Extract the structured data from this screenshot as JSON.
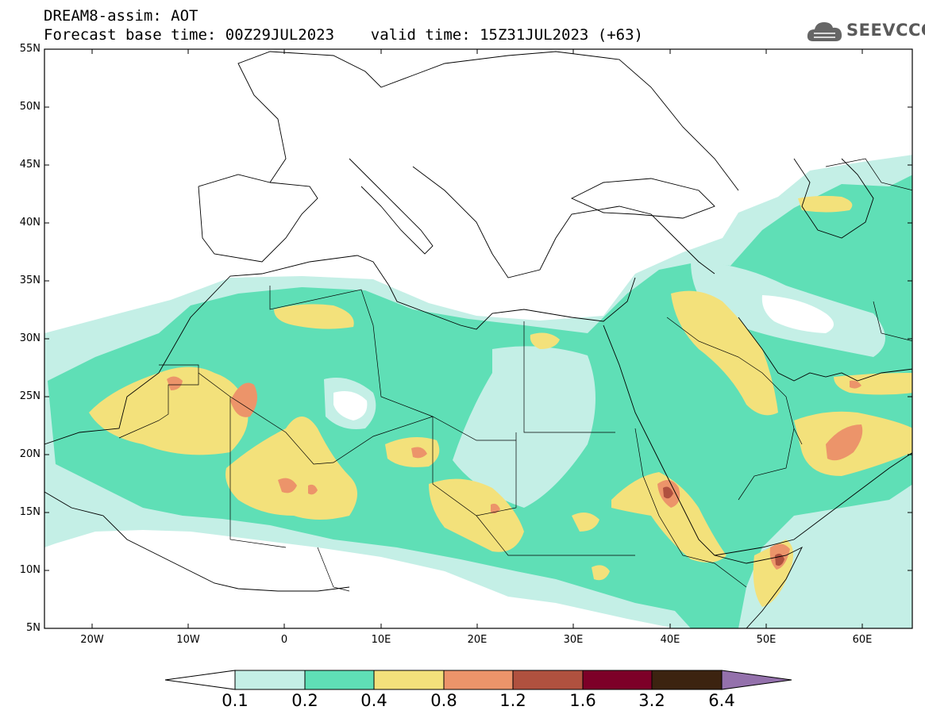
{
  "title": {
    "line1": "DREAM8-assim: AOT",
    "line2": "Forecast base time: 00Z29JUL2023    valid time: 15Z31JUL2023 (+63)"
  },
  "logo": {
    "text": "SEEVCCC",
    "icon": "cloud-icon"
  },
  "map": {
    "lat_labels": [
      "55N",
      "50N",
      "45N",
      "40N",
      "35N",
      "30N",
      "25N",
      "20N",
      "15N",
      "10N",
      "5N"
    ],
    "lon_labels": [
      "20W",
      "10W",
      "0",
      "10E",
      "20E",
      "30E",
      "40E",
      "50E",
      "60E"
    ],
    "lat_range": [
      5,
      55
    ],
    "lon_range": [
      -25,
      65
    ]
  },
  "colorbar": {
    "labels": [
      "0.1",
      "0.2",
      "0.4",
      "0.8",
      "1.2",
      "1.6",
      "3.2",
      "6.4"
    ],
    "colors": [
      "#ffffff",
      "#c4efe6",
      "#5fdfb6",
      "#f3e17b",
      "#ec946a",
      "#b0513f",
      "#7d0028",
      "#3c2310",
      "#9471ac"
    ]
  },
  "colors": {
    "aot_0_1_0_2": "#c4efe6",
    "aot_0_2_0_4": "#5fdfb6",
    "aot_0_4_0_8": "#f3e17b",
    "aot_0_8_1_2": "#ec946a",
    "aot_1_2_1_6": "#b0513f"
  }
}
